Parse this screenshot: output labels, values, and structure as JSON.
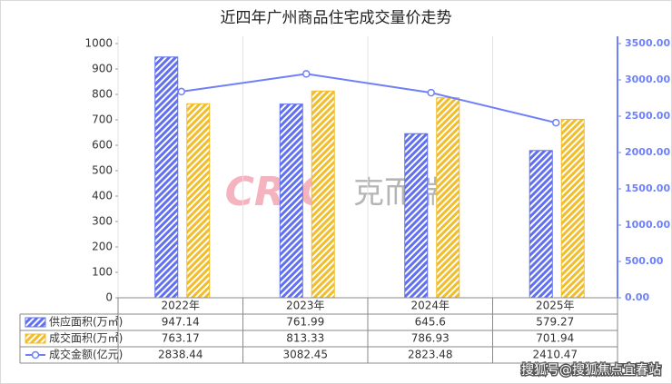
{
  "chart_data": {
    "type": "bar",
    "title": "近四年广州商品住宅成交量价走势",
    "categories": [
      "2022年",
      "2023年",
      "2024年",
      "2025年"
    ],
    "series": [
      {
        "name": "供应面积(万㎡)",
        "color": "#6170f0",
        "type": "bar",
        "values": [
          947.14,
          761.99,
          645.6,
          579.27
        ]
      },
      {
        "name": "成交面积(万㎡)",
        "color": "#f2bd2c",
        "type": "bar",
        "values": [
          763.17,
          813.33,
          786.93,
          701.94
        ]
      },
      {
        "name": "成交金额(亿元)",
        "color": "#6e80f8",
        "type": "line",
        "axis": "y2",
        "values": [
          2838.44,
          3082.45,
          2823.48,
          2410.47
        ]
      }
    ],
    "ylim": [
      0,
      1000
    ],
    "yticks": [
      0,
      100,
      200,
      300,
      400,
      500,
      600,
      700,
      800,
      900,
      1000
    ],
    "y2lim": [
      0,
      3500
    ],
    "y2ticks": [
      {
        "value": 0,
        "label": "0.00"
      },
      {
        "value": 500,
        "label": "500.00"
      },
      {
        "value": 1000,
        "label": "1000.00"
      },
      {
        "value": 1500,
        "label": "1500.00"
      },
      {
        "value": 2000,
        "label": "2000.00"
      },
      {
        "value": 2500,
        "label": "2500.00"
      },
      {
        "value": 3000,
        "label": "3000.00"
      },
      {
        "value": 3500,
        "label": "3500.00"
      }
    ],
    "data_table": true,
    "watermark": {
      "logo": "CRIC",
      "text": "克而瑞"
    },
    "source": "搜狐号@搜狐焦点宜春站"
  }
}
